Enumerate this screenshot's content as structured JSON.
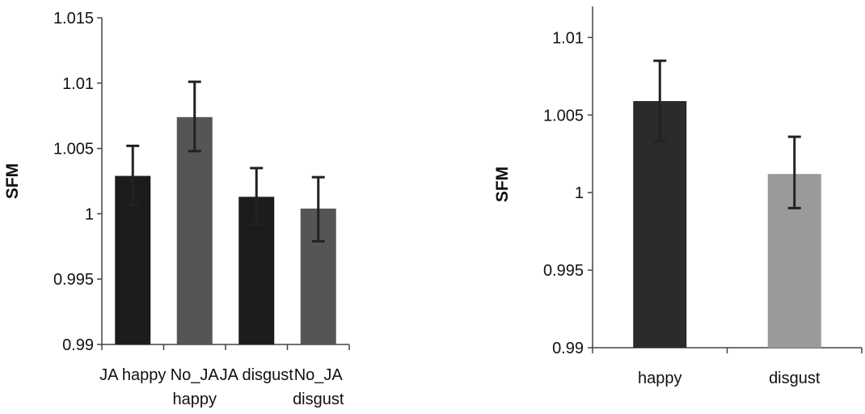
{
  "chart_data": [
    {
      "type": "bar",
      "categories": [
        [
          "JA happy"
        ],
        [
          "No_JA",
          "happy"
        ],
        [
          "JA disgust"
        ],
        [
          "No_JA",
          "disgust"
        ]
      ],
      "values": [
        1.0029,
        1.0074,
        1.0013,
        1.0004
      ],
      "error_low": [
        1.0007,
        1.0048,
        0.9992,
        0.9979
      ],
      "error_high": [
        1.0052,
        1.0101,
        1.0035,
        1.0028
      ],
      "colors": [
        "#1c1c1c",
        "#555555",
        "#1c1c1c",
        "#555555"
      ],
      "ylabel": "SFM",
      "xlabel": "",
      "ylim": [
        0.99,
        1.015
      ],
      "yticks": [
        0.99,
        0.995,
        1,
        1.005,
        1.01,
        1.015
      ],
      "ytick_labels": [
        "0.99",
        "0.995",
        "1",
        "1.005",
        "1.01",
        "1.015"
      ],
      "grid": false,
      "legend": "none"
    },
    {
      "type": "bar",
      "categories": [
        [
          "happy"
        ],
        [
          "disgust"
        ]
      ],
      "values": [
        1.0059,
        1.0012
      ],
      "error_low": [
        1.0033,
        0.999
      ],
      "error_high": [
        1.0085,
        1.0036
      ],
      "colors": [
        "#2b2b2b",
        "#9a9a9a"
      ],
      "ylabel": "SFM",
      "xlabel": "",
      "ylim": [
        0.99,
        1.012
      ],
      "yticks": [
        0.99,
        0.995,
        1,
        1.005,
        1.01
      ],
      "ytick_labels": [
        "0.99",
        "0.995",
        "1",
        "1.005",
        "1.01"
      ],
      "grid": false,
      "legend": "none"
    }
  ]
}
